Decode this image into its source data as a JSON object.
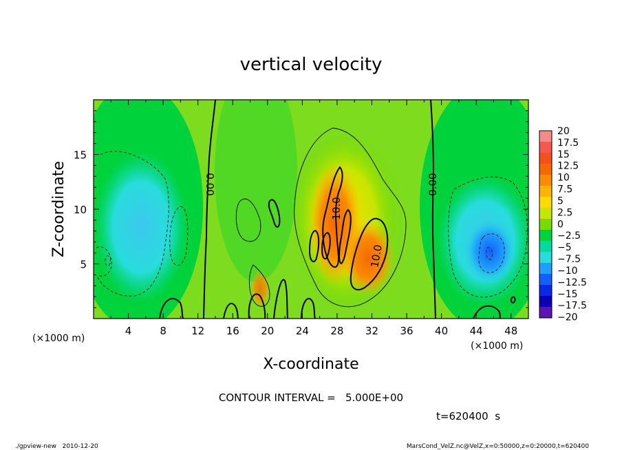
{
  "chart_data": {
    "type": "heatmap",
    "title": "vertical velocity",
    "xlabel": "X-coordinate",
    "ylabel": "Z-coordinate",
    "x_unit": "(×1000 m)",
    "z_unit": "(×1000 m)",
    "xlim": [
      0,
      50
    ],
    "ylim": [
      0,
      20
    ],
    "x_ticks": [
      "4",
      "8",
      "12",
      "16",
      "20",
      "24",
      "28",
      "32",
      "36",
      "40",
      "44",
      "48"
    ],
    "y_ticks": [
      "5",
      "10",
      "15"
    ],
    "colorbar": {
      "labels": [
        "20",
        "17.5",
        "15",
        "12.5",
        "10",
        "7.5",
        "5",
        "2.5",
        "0",
        "−2.5",
        "−5",
        "−7.5",
        "−10",
        "−12.5",
        "−15",
        "−17.5",
        "−20"
      ],
      "colors": [
        "#f48a8a",
        "#f4584e",
        "#f4501e",
        "#f46a00",
        "#fa8c00",
        "#ffb400",
        "#ffdc00",
        "#c8e600",
        "#78dc00",
        "#00d23c",
        "#00dca0",
        "#28dcdc",
        "#1ea0ff",
        "#1460ff",
        "#0a28e6",
        "#0a00b4",
        "#5a14b4"
      ]
    },
    "contour_labels": [
      {
        "text": "0.00",
        "x": 13.3,
        "z": 12.4,
        "angle": 90
      },
      {
        "text": "0.00",
        "x": 38.4,
        "z": 12.4,
        "angle": -90
      },
      {
        "text": "10.0",
        "x": 28.6,
        "z": 10.2,
        "angle": -90
      },
      {
        "text": "10.0",
        "x": 32.6,
        "z": 5.8,
        "angle": -80
      }
    ],
    "contour_interval": "CONTOUR INTERVAL =   5.000E+00",
    "time_label": "t=620400  s"
  },
  "footer": {
    "left": "./gpview-new   2010-12-20",
    "right": "MarsCond_VelZ.nc@VelZ,x=0:50000,z=0:20000,t=620400"
  }
}
